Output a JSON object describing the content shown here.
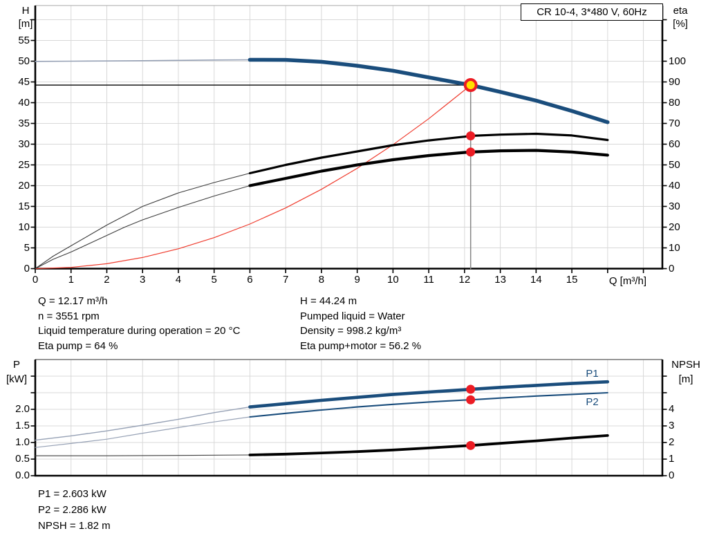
{
  "title_box": "CR 10-4, 3*480 V, 60Hz",
  "colors": {
    "blue": "#1a4d7c",
    "light_blue": "#96a1b5",
    "red": "#ef3b2d",
    "black": "#000000",
    "dark_gray": "#3c3c3c",
    "gray": "#8a8a8a",
    "grid": "#d8d8d8",
    "frame_top": "#9a9a9a",
    "marker_red": "#ec1c24",
    "marker_yellow": "#ffe100"
  },
  "annotations": {
    "top_left": [
      "Q = 12.17 m³/h",
      "n = 3551 rpm",
      "Liquid temperature during operation = 20 °C",
      "Eta pump = 64 %"
    ],
    "top_right": [
      "H = 44.24 m",
      "Pumped liquid = Water",
      "Density = 998.2 kg/m³",
      "Eta pump+motor = 56.2 %"
    ],
    "bottom": [
      "P1 = 2.603 kW",
      "P2 = 2.286 kW",
      "NPSH = 1.82 m"
    ]
  },
  "chart_data": [
    {
      "name": "qh-eta-chart",
      "type": "line",
      "title": "CR 10-4, 3*480 V, 60Hz",
      "x_axis": {
        "label": "Q [m³/h]",
        "min": 0,
        "max": 17.5,
        "tick_vals": [
          0,
          1,
          2,
          3,
          4,
          5,
          6,
          7,
          8,
          9,
          10,
          11,
          12,
          13,
          14,
          15,
          16,
          17
        ],
        "tick_labels": [
          "0",
          "1",
          "2",
          "3",
          "4",
          "5",
          "6",
          "7",
          "8",
          "9",
          "10",
          "11",
          "12",
          "13",
          "14",
          "15"
        ]
      },
      "y_left": {
        "axis": "H",
        "label": "H",
        "unit": "[m]",
        "min": 0,
        "max": 63,
        "tick_vals": [
          0,
          5,
          10,
          15,
          20,
          25,
          30,
          35,
          40,
          45,
          50,
          55,
          60
        ],
        "tick_labels": [
          "0",
          "5",
          "10",
          "15",
          "20",
          "25",
          "30",
          "35",
          "40",
          "45",
          "50",
          "55"
        ]
      },
      "y_right": {
        "axis": "eta",
        "label": "eta",
        "unit": "[%]",
        "min": 0,
        "max": 126,
        "tick_vals": [
          0,
          10,
          20,
          30,
          40,
          50,
          60,
          70,
          80,
          90,
          100,
          110,
          120
        ],
        "tick_labels": [
          "0",
          "10",
          "20",
          "30",
          "40",
          "50",
          "60",
          "70",
          "80",
          "90",
          "100"
        ]
      },
      "operating_point": {
        "Q": 12.17,
        "H": 44.24,
        "eta_pump": 64,
        "eta_pump_motor": 56.2
      },
      "series": [
        {
          "name": "duty-q-line",
          "axis": "H",
          "color": "gray",
          "width": 1.6,
          "points": [
            [
              12.17,
              44.24
            ],
            [
              12.17,
              0
            ]
          ]
        },
        {
          "name": "duty-h-line",
          "axis": "H",
          "color": "black",
          "width": 1.4,
          "points": [
            [
              0,
              44.24
            ],
            [
              12.17,
              44.24
            ]
          ]
        },
        {
          "name": "system-curve",
          "axis": "H",
          "color": "red",
          "width": 1.2,
          "points": [
            [
              0,
              0
            ],
            [
              1,
              0.3
            ],
            [
              2,
              1.19
            ],
            [
              3,
              2.69
            ],
            [
              4,
              4.78
            ],
            [
              5,
              7.47
            ],
            [
              6,
              10.75
            ],
            [
              7,
              14.63
            ],
            [
              8,
              19.11
            ],
            [
              9,
              24.19
            ],
            [
              10,
              29.87
            ],
            [
              11,
              36.14
            ],
            [
              12,
              43.01
            ],
            [
              12.17,
              44.24
            ]
          ]
        },
        {
          "name": "eta-pump-curve-preview",
          "axis": "eta",
          "color": "dark_gray",
          "width": 1.1,
          "points": [
            [
              0,
              0
            ],
            [
              0.5,
              6
            ],
            [
              1,
              11
            ],
            [
              1.5,
              16
            ],
            [
              2,
              21
            ],
            [
              2.5,
              25.5
            ],
            [
              3,
              30
            ],
            [
              4,
              36.5
            ],
            [
              5,
              41.5
            ],
            [
              6,
              46
            ]
          ]
        },
        {
          "name": "eta-pump-motor-curve-preview",
          "axis": "eta",
          "color": "dark_gray",
          "width": 1.1,
          "points": [
            [
              0,
              0
            ],
            [
              0.5,
              4.5
            ],
            [
              1,
              8
            ],
            [
              1.5,
              12
            ],
            [
              2,
              16
            ],
            [
              2.5,
              20
            ],
            [
              3,
              23.5
            ],
            [
              4,
              29.5
            ],
            [
              5,
              35
            ],
            [
              6,
              40
            ]
          ]
        },
        {
          "name": "eta-pump-curve",
          "axis": "eta",
          "color": "black",
          "width": 3.2,
          "points": [
            [
              6,
              46
            ],
            [
              7,
              50
            ],
            [
              8,
              53.5
            ],
            [
              9,
              56.5
            ],
            [
              10,
              59.5
            ],
            [
              11,
              61.8
            ],
            [
              12,
              63.6
            ],
            [
              12.17,
              64
            ],
            [
              13,
              64.6
            ],
            [
              14,
              65
            ],
            [
              15,
              64.2
            ],
            [
              16,
              62
            ]
          ]
        },
        {
          "name": "eta-pump-motor-curve",
          "axis": "eta",
          "color": "black",
          "width": 4.2,
          "points": [
            [
              6,
              40
            ],
            [
              7,
              43.5
            ],
            [
              8,
              47
            ],
            [
              9,
              50
            ],
            [
              10,
              52.5
            ],
            [
              11,
              54.5
            ],
            [
              12,
              56
            ],
            [
              12.17,
              56.2
            ],
            [
              13,
              56.8
            ],
            [
              14,
              57
            ],
            [
              15,
              56.2
            ],
            [
              16,
              54.7
            ]
          ]
        },
        {
          "name": "qh-curve-preview",
          "axis": "H",
          "color": "light_blue",
          "width": 1.6,
          "points": [
            [
              0,
              49.95
            ],
            [
              1,
              50.0
            ],
            [
              2,
              50.05
            ],
            [
              3,
              50.12
            ],
            [
              4,
              50.2
            ],
            [
              5,
              50.28
            ],
            [
              6,
              50.33
            ]
          ]
        },
        {
          "name": "qh-curve",
          "axis": "H",
          "color": "blue",
          "width": 5.5,
          "points": [
            [
              6,
              50.33
            ],
            [
              7,
              50.32
            ],
            [
              8,
              49.85
            ],
            [
              9,
              48.9
            ],
            [
              10,
              47.7
            ],
            [
              11,
              46.1
            ],
            [
              12,
              44.5
            ],
            [
              12.17,
              44.24
            ],
            [
              13,
              42.6
            ],
            [
              14,
              40.5
            ],
            [
              15,
              38.0
            ],
            [
              16,
              35.3
            ]
          ]
        }
      ],
      "markers": [
        {
          "name": "eta-pump-point",
          "q": 12.17,
          "v": 64,
          "axis": "eta",
          "style": "dot"
        },
        {
          "name": "eta-pump-motor-point",
          "q": 12.17,
          "v": 56.2,
          "axis": "eta",
          "style": "dot"
        },
        {
          "name": "duty-point",
          "q": 12.17,
          "v": 44.24,
          "axis": "H",
          "style": "op"
        }
      ],
      "inline_labels": []
    },
    {
      "name": "power-npsh-chart",
      "type": "line",
      "x_axis": {
        "label": "",
        "min": 0,
        "max": 17.5,
        "tick_vals": [
          1,
          2,
          3,
          4,
          5,
          6,
          7,
          8,
          9,
          10,
          11,
          12,
          13,
          14,
          15,
          16,
          17
        ],
        "tick_labels": []
      },
      "y_left": {
        "axis": "P",
        "label": "P",
        "unit": "[kW]",
        "min": 0,
        "max": 3.5,
        "tick_vals": [
          0,
          0.5,
          1,
          1.5,
          2,
          2.5,
          3
        ],
        "tick_labels": [
          "0.0",
          "0.5",
          "1.0",
          "1.5",
          "2.0"
        ]
      },
      "y_right": {
        "axis": "NPSH",
        "label": "NPSH",
        "unit": "[m]",
        "min": 0,
        "max": 7,
        "tick_vals": [
          0,
          1,
          2,
          3,
          4,
          5,
          6
        ],
        "tick_labels": [
          "0",
          "1",
          "2",
          "3",
          "4"
        ]
      },
      "operating_point": {
        "Q": 12.17,
        "P1": 2.603,
        "P2": 2.286,
        "NPSH": 1.82
      },
      "series": [
        {
          "name": "p1-curve-preview",
          "axis": "P",
          "color": "light_blue",
          "width": 1.4,
          "points": [
            [
              0,
              1.07
            ],
            [
              1,
              1.2
            ],
            [
              2,
              1.35
            ],
            [
              3,
              1.52
            ],
            [
              4,
              1.7
            ],
            [
              5,
              1.9
            ],
            [
              6,
              2.07
            ]
          ]
        },
        {
          "name": "p2-curve-preview",
          "axis": "P",
          "color": "light_blue",
          "width": 1.2,
          "points": [
            [
              0,
              0.85
            ],
            [
              1,
              0.97
            ],
            [
              2,
              1.1
            ],
            [
              3,
              1.28
            ],
            [
              4,
              1.45
            ],
            [
              5,
              1.62
            ],
            [
              6,
              1.77
            ]
          ]
        },
        {
          "name": "npsh-curve-preview",
          "axis": "NPSH",
          "color": "dark_gray",
          "width": 1.1,
          "points": [
            [
              0,
              1.2
            ],
            [
              2,
              1.2
            ],
            [
              4,
              1.22
            ],
            [
              6,
              1.25
            ]
          ]
        },
        {
          "name": "p1-curve",
          "axis": "P",
          "color": "blue",
          "width": 4.6,
          "points": [
            [
              6,
              2.07
            ],
            [
              7,
              2.17
            ],
            [
              8,
              2.27
            ],
            [
              9,
              2.36
            ],
            [
              10,
              2.45
            ],
            [
              11,
              2.52
            ],
            [
              12,
              2.59
            ],
            [
              12.17,
              2.603
            ],
            [
              13,
              2.66
            ],
            [
              14,
              2.72
            ],
            [
              15,
              2.78
            ],
            [
              16,
              2.83
            ]
          ]
        },
        {
          "name": "p2-curve",
          "axis": "P",
          "color": "blue",
          "width": 2.1,
          "points": [
            [
              6,
              1.77
            ],
            [
              7,
              1.88
            ],
            [
              8,
              1.98
            ],
            [
              9,
              2.07
            ],
            [
              10,
              2.15
            ],
            [
              11,
              2.22
            ],
            [
              12,
              2.28
            ],
            [
              12.17,
              2.286
            ],
            [
              13,
              2.34
            ],
            [
              14,
              2.4
            ],
            [
              15,
              2.45
            ],
            [
              16,
              2.5
            ]
          ]
        },
        {
          "name": "npsh-curve",
          "axis": "NPSH",
          "color": "black",
          "width": 3.8,
          "points": [
            [
              6,
              1.25
            ],
            [
              7,
              1.3
            ],
            [
              8,
              1.37
            ],
            [
              9,
              1.45
            ],
            [
              10,
              1.55
            ],
            [
              11,
              1.67
            ],
            [
              12,
              1.8
            ],
            [
              12.17,
              1.82
            ],
            [
              13,
              1.95
            ],
            [
              14,
              2.1
            ],
            [
              15,
              2.27
            ],
            [
              16,
              2.42
            ]
          ]
        }
      ],
      "markers": [
        {
          "name": "p1-point",
          "q": 12.17,
          "v": 2.603,
          "axis": "P",
          "style": "dot"
        },
        {
          "name": "p2-point",
          "q": 12.17,
          "v": 2.286,
          "axis": "P",
          "style": "dot"
        },
        {
          "name": "npsh-point",
          "q": 12.17,
          "v": 1.82,
          "axis": "NPSH",
          "style": "dot"
        }
      ],
      "inline_labels": [
        {
          "text": "P1",
          "q": 15.55,
          "v": 3.05,
          "axis": "P",
          "color": "blue"
        },
        {
          "text": "P2",
          "q": 15.55,
          "v": 2.18,
          "axis": "P",
          "color": "blue"
        }
      ]
    }
  ]
}
